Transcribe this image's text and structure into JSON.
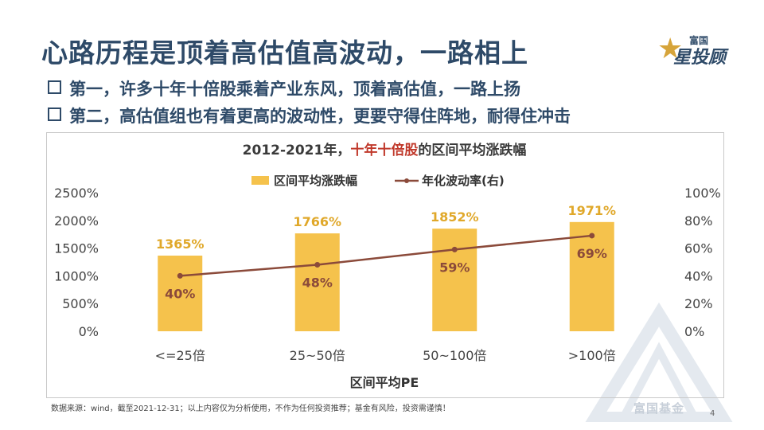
{
  "slide": {
    "title": "心路历程是顶着高估值高波动，一路相上",
    "logo_top": "富国",
    "logo_main": "星投顾",
    "bullets": [
      "第一，许多十年十倍股乘着产业东风，顶着高估值，一路上扬",
      "第二，高估值组也有着更高的波动性，更要守得住阵地，耐得住冲击"
    ],
    "footnote": "数据来源：wind，截至2021-12-31；以上内容仅为分析使用，不作为任何投资推荐；基金有风险，投资需谨慎！",
    "page_number": "4",
    "watermark_text": "富国基金",
    "colors": {
      "title": "#2e4a68",
      "bar": "#f5c24c",
      "bar_label": "#e0a82a",
      "line": "#8b4a3a",
      "highlight": "#c0392b"
    }
  },
  "chart_data": {
    "type": "bar",
    "title_prefix": "2012-2021年，",
    "title_highlight": "十年十倍股",
    "title_suffix": "的区间平均涨跌幅",
    "categories": [
      "<=25倍",
      "25~50倍",
      "50~100倍",
      ">100倍"
    ],
    "series": [
      {
        "name": "区间平均涨跌幅",
        "type": "bar",
        "axis": "left",
        "values": [
          1365,
          1766,
          1852,
          1971
        ],
        "labels": [
          "1365%",
          "1766%",
          "1852%",
          "1971%"
        ]
      },
      {
        "name": "年化波动率(右)",
        "type": "line",
        "axis": "right",
        "values": [
          40,
          48,
          59,
          69
        ],
        "labels": [
          "40%",
          "48%",
          "59%",
          "69%"
        ]
      }
    ],
    "xlabel": "区间平均PE",
    "y_left": {
      "range": [
        0,
        2500
      ],
      "ticks": [
        "0%",
        "500%",
        "1000%",
        "1500%",
        "2000%",
        "2500%"
      ]
    },
    "y_right": {
      "range": [
        0,
        100
      ],
      "ticks": [
        "0%",
        "20%",
        "40%",
        "60%",
        "80%",
        "100%"
      ]
    },
    "legend_position": "top",
    "grid": false
  }
}
